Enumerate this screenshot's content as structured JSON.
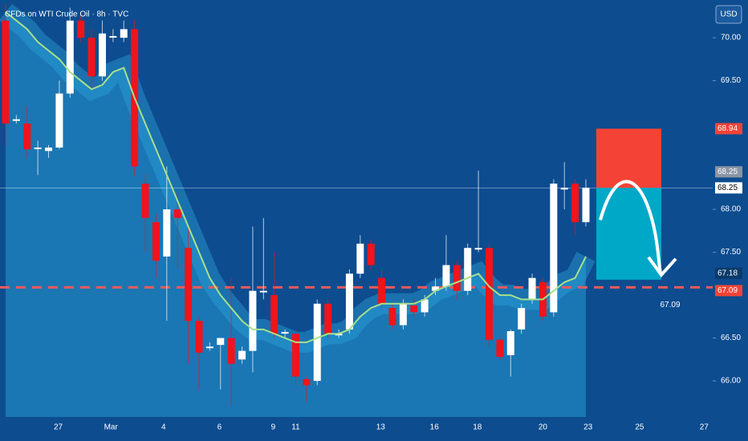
{
  "chart_data": {
    "type": "candlestick",
    "title": "CFDs on WTI Crude Oil · 8h · TVC",
    "currency": "USD",
    "open": [
      70.2,
      69.05,
      69.0,
      68.72,
      68.68,
      68.72,
      69.35,
      70.2,
      70.0,
      69.55,
      70.02,
      70.0,
      70.1,
      68.3,
      67.85,
      67.45,
      68.0,
      67.55,
      66.7,
      66.4,
      66.42,
      66.5,
      66.25,
      66.35,
      67.05,
      67.0,
      66.57,
      66.55,
      66.02,
      66.0,
      66.9,
      66.55,
      66.6,
      67.25,
      67.6,
      67.2,
      66.85,
      66.65,
      66.88,
      66.8,
      67.05,
      67.1,
      67.35,
      67.05,
      67.55,
      67.55,
      66.48,
      66.3,
      66.6,
      66.95,
      67.15,
      66.8,
      68.25,
      68.3,
      67.85
    ],
    "high": [
      70.4,
      69.1,
      69.2,
      68.8,
      68.75,
      69.5,
      70.35,
      70.3,
      70.1,
      70.2,
      70.1,
      70.2,
      70.2,
      68.4,
      67.95,
      68.5,
      68.2,
      67.8,
      66.75,
      66.45,
      66.5,
      67.2,
      66.4,
      67.8,
      67.9,
      67.5,
      66.6,
      66.6,
      66.05,
      66.95,
      66.95,
      66.6,
      67.3,
      67.7,
      67.65,
      67.3,
      66.9,
      66.95,
      66.95,
      67.0,
      67.2,
      67.7,
      67.4,
      67.6,
      68.45,
      67.6,
      66.5,
      66.6,
      66.9,
      67.25,
      67.2,
      68.35,
      68.55,
      68.35,
      68.35
    ],
    "low": [
      68.75,
      69.0,
      68.6,
      68.4,
      68.6,
      68.7,
      69.3,
      69.95,
      69.4,
      69.5,
      69.95,
      69.95,
      68.4,
      67.5,
      67.2,
      66.7,
      67.3,
      66.2,
      65.9,
      66.35,
      65.9,
      65.7,
      66.2,
      66.1,
      66.95,
      66.5,
      66.5,
      65.95,
      65.75,
      65.95,
      66.5,
      66.5,
      66.55,
      67.2,
      67.3,
      66.85,
      66.6,
      66.6,
      66.75,
      66.75,
      67.0,
      67.05,
      66.95,
      67.0,
      67.5,
      66.4,
      66.25,
      66.05,
      66.55,
      66.9,
      66.7,
      66.75,
      68.0,
      67.7,
      67.8
    ],
    "close": [
      69.0,
      69.05,
      68.7,
      68.72,
      68.72,
      69.35,
      70.2,
      70.0,
      69.55,
      70.05,
      70.02,
      70.1,
      68.5,
      67.9,
      67.4,
      68.0,
      67.9,
      66.7,
      66.33,
      66.4,
      66.5,
      66.2,
      66.35,
      67.05,
      67.05,
      66.55,
      66.57,
      66.05,
      65.95,
      66.9,
      66.55,
      66.55,
      67.25,
      67.6,
      67.35,
      66.9,
      66.65,
      66.9,
      66.8,
      66.95,
      67.1,
      67.35,
      67.05,
      67.55,
      67.55,
      66.48,
      66.28,
      66.58,
      66.85,
      67.2,
      66.75,
      68.3,
      68.25,
      67.85,
      68.25
    ],
    "ma": [
      70.3,
      70.2,
      70.1,
      69.95,
      69.85,
      69.75,
      69.6,
      69.5,
      69.4,
      69.45,
      69.6,
      69.65,
      69.3,
      69.0,
      68.7,
      68.4,
      68.1,
      67.8,
      67.5,
      67.2,
      67.0,
      66.85,
      66.7,
      66.6,
      66.6,
      66.55,
      66.5,
      66.45,
      66.45,
      66.5,
      66.55,
      66.55,
      66.6,
      66.75,
      66.85,
      66.9,
      66.9,
      66.9,
      66.9,
      66.95,
      67.05,
      67.1,
      67.15,
      67.2,
      67.25,
      67.1,
      67.0,
      67.0,
      66.95,
      66.95,
      66.95,
      67.05,
      67.15,
      67.2,
      67.45
    ],
    "up_color": "#ffffff",
    "down_color": "#f0141c",
    "ma_color": "#a8e08a",
    "xlim": [
      -0.52,
      65.8
    ],
    "xticks": [
      {
        "value": 4.9,
        "label": "27"
      },
      {
        "value": 9.8,
        "label": "Mar"
      },
      {
        "value": 14.7,
        "label": "4"
      },
      {
        "value": 19.9,
        "label": "6"
      },
      {
        "value": 24.9,
        "label": "9"
      },
      {
        "value": 27.0,
        "label": "11"
      },
      {
        "value": 34.9,
        "label": "13"
      },
      {
        "value": 39.9,
        "label": "16"
      },
      {
        "value": 43.9,
        "label": "18"
      },
      {
        "value": 50.0,
        "label": "20"
      },
      {
        "value": 54.2,
        "label": "23"
      },
      {
        "value": 59.0,
        "label": "25"
      },
      {
        "value": 65.0,
        "label": "27"
      }
    ],
    "ylim": [
      65.58,
      70.44
    ],
    "yticks": [
      {
        "value": 66.0,
        "label": "66.00"
      },
      {
        "value": 66.5,
        "label": "66.50"
      },
      {
        "value": 67.5,
        "label": "67.50"
      },
      {
        "value": 68.0,
        "label": "68.00"
      },
      {
        "value": 69.5,
        "label": "69.50"
      },
      {
        "value": 70.0,
        "label": "70.00"
      }
    ],
    "levels": {
      "stop": {
        "value": 68.94,
        "label": "68.94"
      },
      "entry": {
        "value": 68.25,
        "label": "68.25"
      },
      "target": {
        "value": 67.18,
        "label": "67.18"
      },
      "support": {
        "value": 67.09,
        "label": "67.09"
      }
    }
  }
}
